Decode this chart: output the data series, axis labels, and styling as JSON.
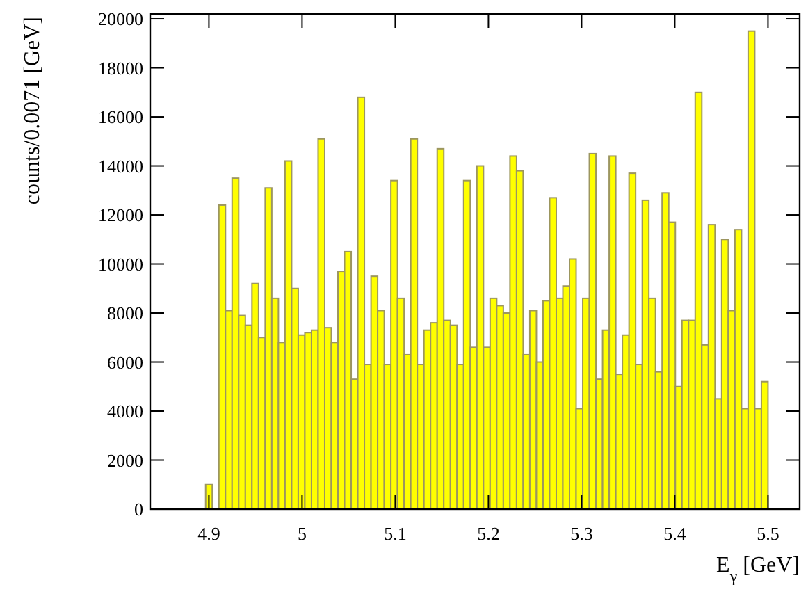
{
  "chart_data": {
    "type": "histogram",
    "xlabel": "E$_{γ}$ [GeV]",
    "ylabel": "counts/0.0071 [GeV]",
    "bins": [
      4.8965,
      4.9036,
      4.9107,
      4.9178,
      4.9249,
      4.932,
      4.9391,
      4.9462,
      4.9533,
      4.9604,
      4.9675,
      4.9746,
      4.9817,
      4.9888,
      4.9959,
      5.003,
      5.0101,
      5.0172,
      5.0243,
      5.0314,
      5.0385,
      5.0456,
      5.0527,
      5.0598,
      5.0669,
      5.074,
      5.0811,
      5.0882,
      5.0953,
      5.1024,
      5.1095,
      5.1166,
      5.1237,
      5.1308,
      5.1379,
      5.145,
      5.1521,
      5.1592,
      5.1663,
      5.1734,
      5.1805,
      5.1876,
      5.1947,
      5.2018,
      5.2089,
      5.216,
      5.2231,
      5.2302,
      5.2373,
      5.2444,
      5.2515,
      5.2586,
      5.2657,
      5.2728,
      5.2799,
      5.287,
      5.2941,
      5.3012,
      5.3083,
      5.3154,
      5.3225,
      5.3296,
      5.3367,
      5.3438,
      5.3509,
      5.358,
      5.3651,
      5.3722,
      5.3793,
      5.3864,
      5.3935,
      5.4006,
      5.4077,
      5.4148,
      5.4219,
      5.429,
      5.4361,
      5.4432,
      5.4503,
      5.4574,
      5.4645,
      5.4716,
      5.4787,
      5.4858,
      5.4929,
      5.5
    ],
    "values": [
      1000,
      0,
      12400,
      8100,
      13500,
      7900,
      7500,
      9200,
      7000,
      13100,
      8600,
      6800,
      14200,
      9000,
      7100,
      7200,
      7300,
      15100,
      7400,
      6800,
      9700,
      10500,
      5300,
      16800,
      5900,
      9500,
      8100,
      5900,
      13400,
      8600,
      6300,
      15100,
      5900,
      7300,
      7600,
      14700,
      7700,
      7500,
      5900,
      13400,
      6600,
      14000,
      6600,
      8600,
      8300,
      8000,
      14400,
      13800,
      6300,
      8100,
      6000,
      8500,
      12700,
      8600,
      9100,
      10200,
      4100,
      8600,
      14500,
      5300,
      7300,
      14400,
      5500,
      7100,
      13700,
      5900,
      12600,
      8600,
      5600,
      12900,
      11700,
      5000,
      7700,
      7700,
      17000,
      6700,
      11600,
      4500,
      11000,
      8100,
      11400,
      4100,
      19500,
      4100,
      5200
    ],
    "color": "#ffff00",
    "xlim": [
      4.837,
      5.534
    ],
    "ylim": [
      0,
      20200
    ],
    "xticks": [
      4.9,
      {
        "value": 5,
        "label": "5"
      },
      5.1,
      5.2,
      5.3,
      5.4,
      5.5
    ],
    "yticks": [
      0,
      2000,
      4000,
      6000,
      8000,
      10000,
      12000,
      14000,
      16000,
      18000,
      20000
    ]
  }
}
